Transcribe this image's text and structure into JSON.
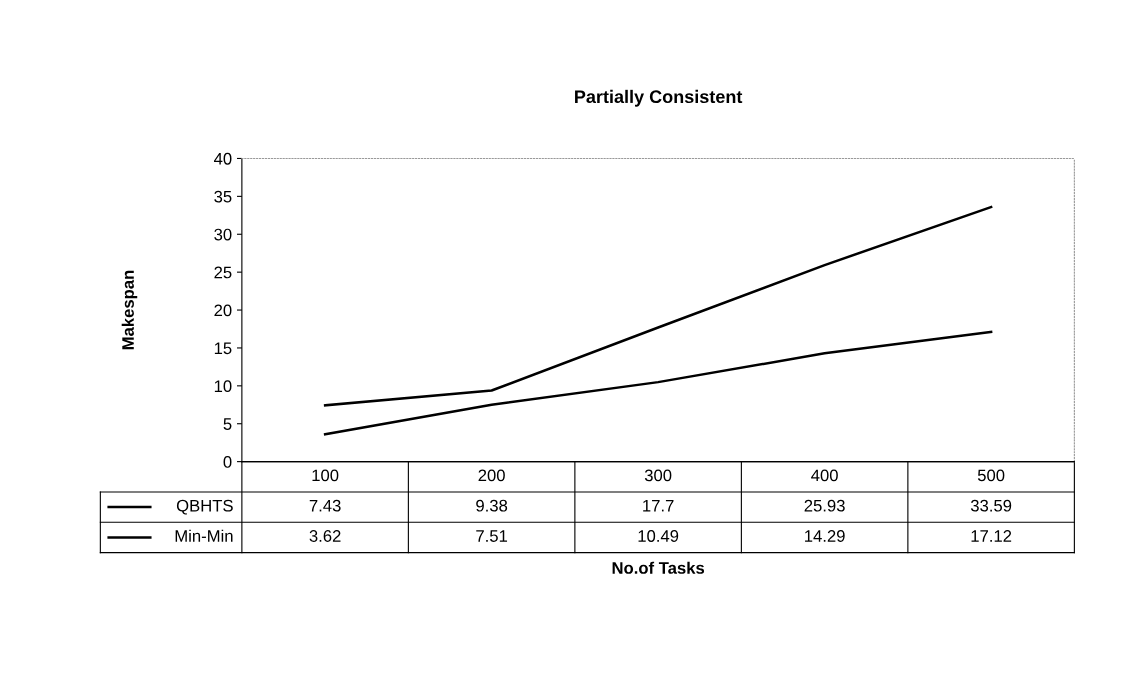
{
  "chart_data": {
    "type": "line",
    "title": "Partially Consistent",
    "xlabel": "No.of Tasks",
    "ylabel": "Makespan",
    "categories": [
      "100",
      "200",
      "300",
      "400",
      "500"
    ],
    "series": [
      {
        "name": "QBHTS",
        "color": "#000000",
        "values": [
          7.43,
          9.38,
          17.7,
          25.93,
          33.59
        ]
      },
      {
        "name": "Min-Min",
        "color": "#000000",
        "values": [
          3.62,
          7.51,
          10.49,
          14.29,
          17.12
        ]
      }
    ],
    "ylim": [
      0,
      40
    ],
    "yticks": [
      0,
      5,
      10,
      15,
      20,
      25,
      30,
      35,
      40
    ],
    "grid": false,
    "legend": "bottom left",
    "data_labels": true,
    "marker": "none",
    "line_style": "solid"
  }
}
